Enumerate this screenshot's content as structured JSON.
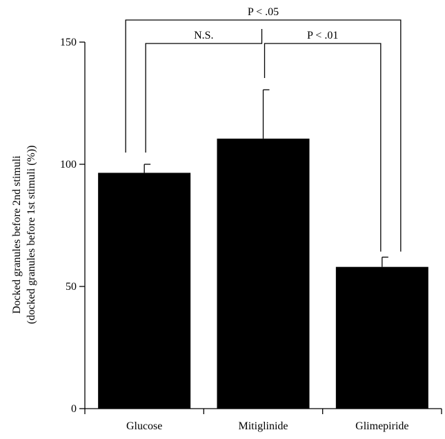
{
  "chart_data": {
    "type": "bar",
    "categories": [
      "Glucose",
      "Mitiglinide",
      "Glimepiride"
    ],
    "values": [
      96.5,
      110.5,
      58
    ],
    "errors": [
      3.5,
      20,
      4
    ],
    "xlabel": "",
    "ylabel_lines": [
      "Docked granules before 2nd stimuli",
      "(docked granules before 1st stimuli (%))"
    ],
    "ylim": [
      0,
      150
    ],
    "yticks": [
      0,
      50,
      100,
      150
    ],
    "bar_color": "#000000",
    "grid": false,
    "significance": [
      {
        "from": 0,
        "to": 1,
        "label": "N.S."
      },
      {
        "from": 1,
        "to": 2,
        "label": "P < .01"
      },
      {
        "from": 0,
        "to": 2,
        "label": "P < .05"
      }
    ]
  }
}
